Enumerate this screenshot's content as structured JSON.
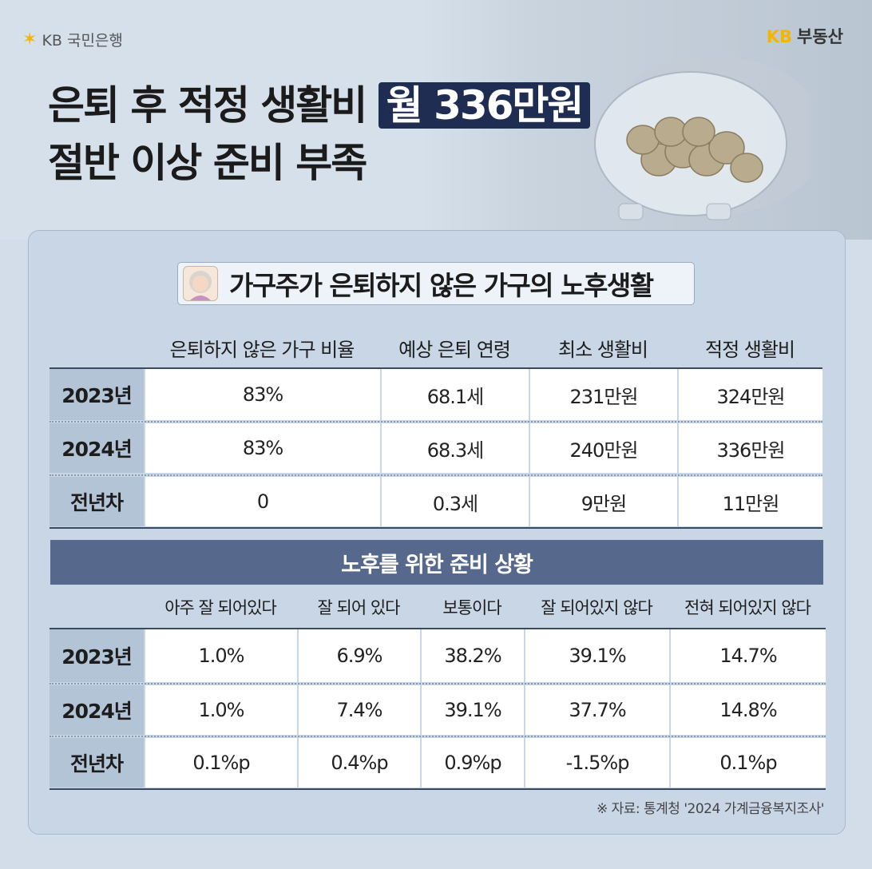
{
  "header": {
    "bank_logo": "KB 국민은행",
    "realty_logo_kb": "KB",
    "realty_logo_text": "부동산",
    "title_part1": "은퇴 후 적정 생활비",
    "title_highlight": "월 336만원",
    "title_line2": "절반 이상 준비 부족"
  },
  "section1": {
    "title": "가구주가 은퇴하지 않은 가구의 노후생활",
    "columns": [
      "은퇴하지 않은 가구 비율",
      "예상 은퇴 연령",
      "최소 생활비",
      "적정 생활비"
    ],
    "rows": [
      {
        "label": "2023년",
        "cells": [
          "83%",
          "68.1세",
          "231만원",
          "324만원"
        ]
      },
      {
        "label": "2024년",
        "cells": [
          "83%",
          "68.3세",
          "240만원",
          "336만원"
        ]
      },
      {
        "label": "전년차",
        "cells": [
          "0",
          "0.3세",
          "9만원",
          "11만원"
        ]
      }
    ]
  },
  "section2": {
    "title": "노후를 위한 준비 상황",
    "columns": [
      "아주 잘 되어있다",
      "잘 되어 있다",
      "보통이다",
      "잘 되어있지 않다",
      "전혀 되어있지 않다"
    ],
    "rows": [
      {
        "label": "2023년",
        "cells": [
          "1.0%",
          "6.9%",
          "38.2%",
          "39.1%",
          "14.7%"
        ]
      },
      {
        "label": "2024년",
        "cells": [
          "1.0%",
          "7.4%",
          "39.1%",
          "37.7%",
          "14.8%"
        ]
      },
      {
        "label": "전년차",
        "cells": [
          "0.1%p",
          "0.4%p",
          "0.9%p",
          "-1.5%p",
          "0.1%p"
        ]
      }
    ]
  },
  "source": "※ 자료: 통계청 '2024 가계금융복지조사'",
  "colors": {
    "accent": "#1f2d52",
    "banner": "#56698c",
    "label_bg": "#b4c4d7",
    "logo_yellow": "#f4b400"
  },
  "icons": [
    "kb-star-icon",
    "piggy-bank-image",
    "grandmother-avatar-icon"
  ]
}
